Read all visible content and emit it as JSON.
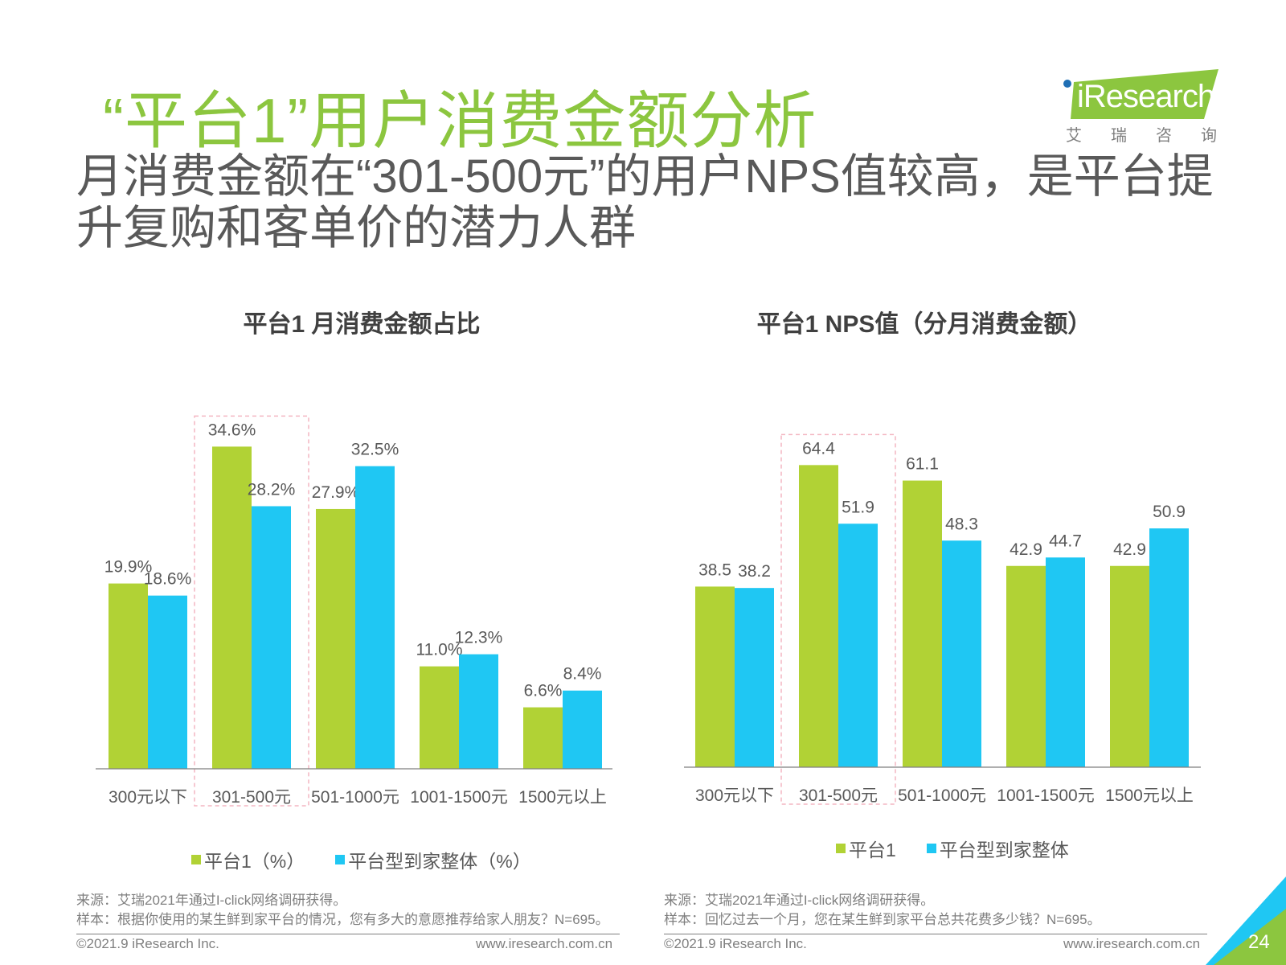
{
  "header": {
    "title": "“平台1”用户消费金额分析",
    "subtitle": "月消费金额在“301-500元”的用户NPS值较高，是平台提升复购和客单价的潜力人群"
  },
  "logo": {
    "word": "iResearch",
    "cn": "艾瑞咨询"
  },
  "colors": {
    "title_green": "#8cc63f",
    "bar_green": "#b1d235",
    "bar_blue": "#1fc7f3",
    "highlight_box": "#f4b6c2",
    "corner_green": "#8cc63f",
    "corner_blue": "#1fc7f3"
  },
  "chart_data": [
    {
      "type": "bar",
      "title": "平台1 月消费金额占比",
      "categories": [
        "300元以下",
        "301-500元",
        "501-1000元",
        "1001-1500元",
        "1500元以上"
      ],
      "series": [
        {
          "name": "平台1（%）",
          "values": [
            19.9,
            34.6,
            27.9,
            11.0,
            6.6
          ],
          "labels": [
            "19.9%",
            "34.6%",
            "27.9%",
            "11.0%",
            "6.6%"
          ]
        },
        {
          "name": "平台型到家整体（%）",
          "values": [
            18.6,
            28.2,
            32.5,
            12.3,
            8.4
          ],
          "labels": [
            "18.6%",
            "28.2%",
            "32.5%",
            "12.3%",
            "8.4%"
          ]
        }
      ],
      "ylim": [
        0,
        38
      ],
      "highlight_category": "301-500元",
      "legend_position": "bottom"
    },
    {
      "type": "bar",
      "title": "平台1 NPS值（分月消费金额）",
      "categories": [
        "300元以下",
        "301-500元",
        "501-1000元",
        "1001-1500元",
        "1500元以上"
      ],
      "series": [
        {
          "name": "平台1",
          "values": [
            38.5,
            64.4,
            61.1,
            42.9,
            42.9
          ],
          "labels": [
            "38.5",
            "64.4",
            "61.1",
            "42.9",
            "42.9"
          ]
        },
        {
          "name": "平台型到家整体",
          "values": [
            38.2,
            51.9,
            48.3,
            44.7,
            50.9
          ],
          "labels": [
            "38.2",
            "51.9",
            "48.3",
            "44.7",
            "50.9"
          ]
        }
      ],
      "ylim": [
        0,
        72
      ],
      "highlight_category": "301-500元",
      "legend_position": "bottom"
    }
  ],
  "sources": {
    "left": {
      "line1": "来源：艾瑞2021年通过I-click网络调研获得。",
      "line2": "样本：根据你使用的某生鲜到家平台的情况，您有多大的意愿推荐给家人朋友？N=695。"
    },
    "right": {
      "line1": "来源：艾瑞2021年通过I-click网络调研获得。",
      "line2": "样本：回忆过去一个月，您在某生鲜到家平台总共花费多少钱？N=695。"
    }
  },
  "footer": {
    "copyright": "©2021.9 iResearch Inc.",
    "website": "www.iresearch.com.cn",
    "page_number": "24"
  }
}
